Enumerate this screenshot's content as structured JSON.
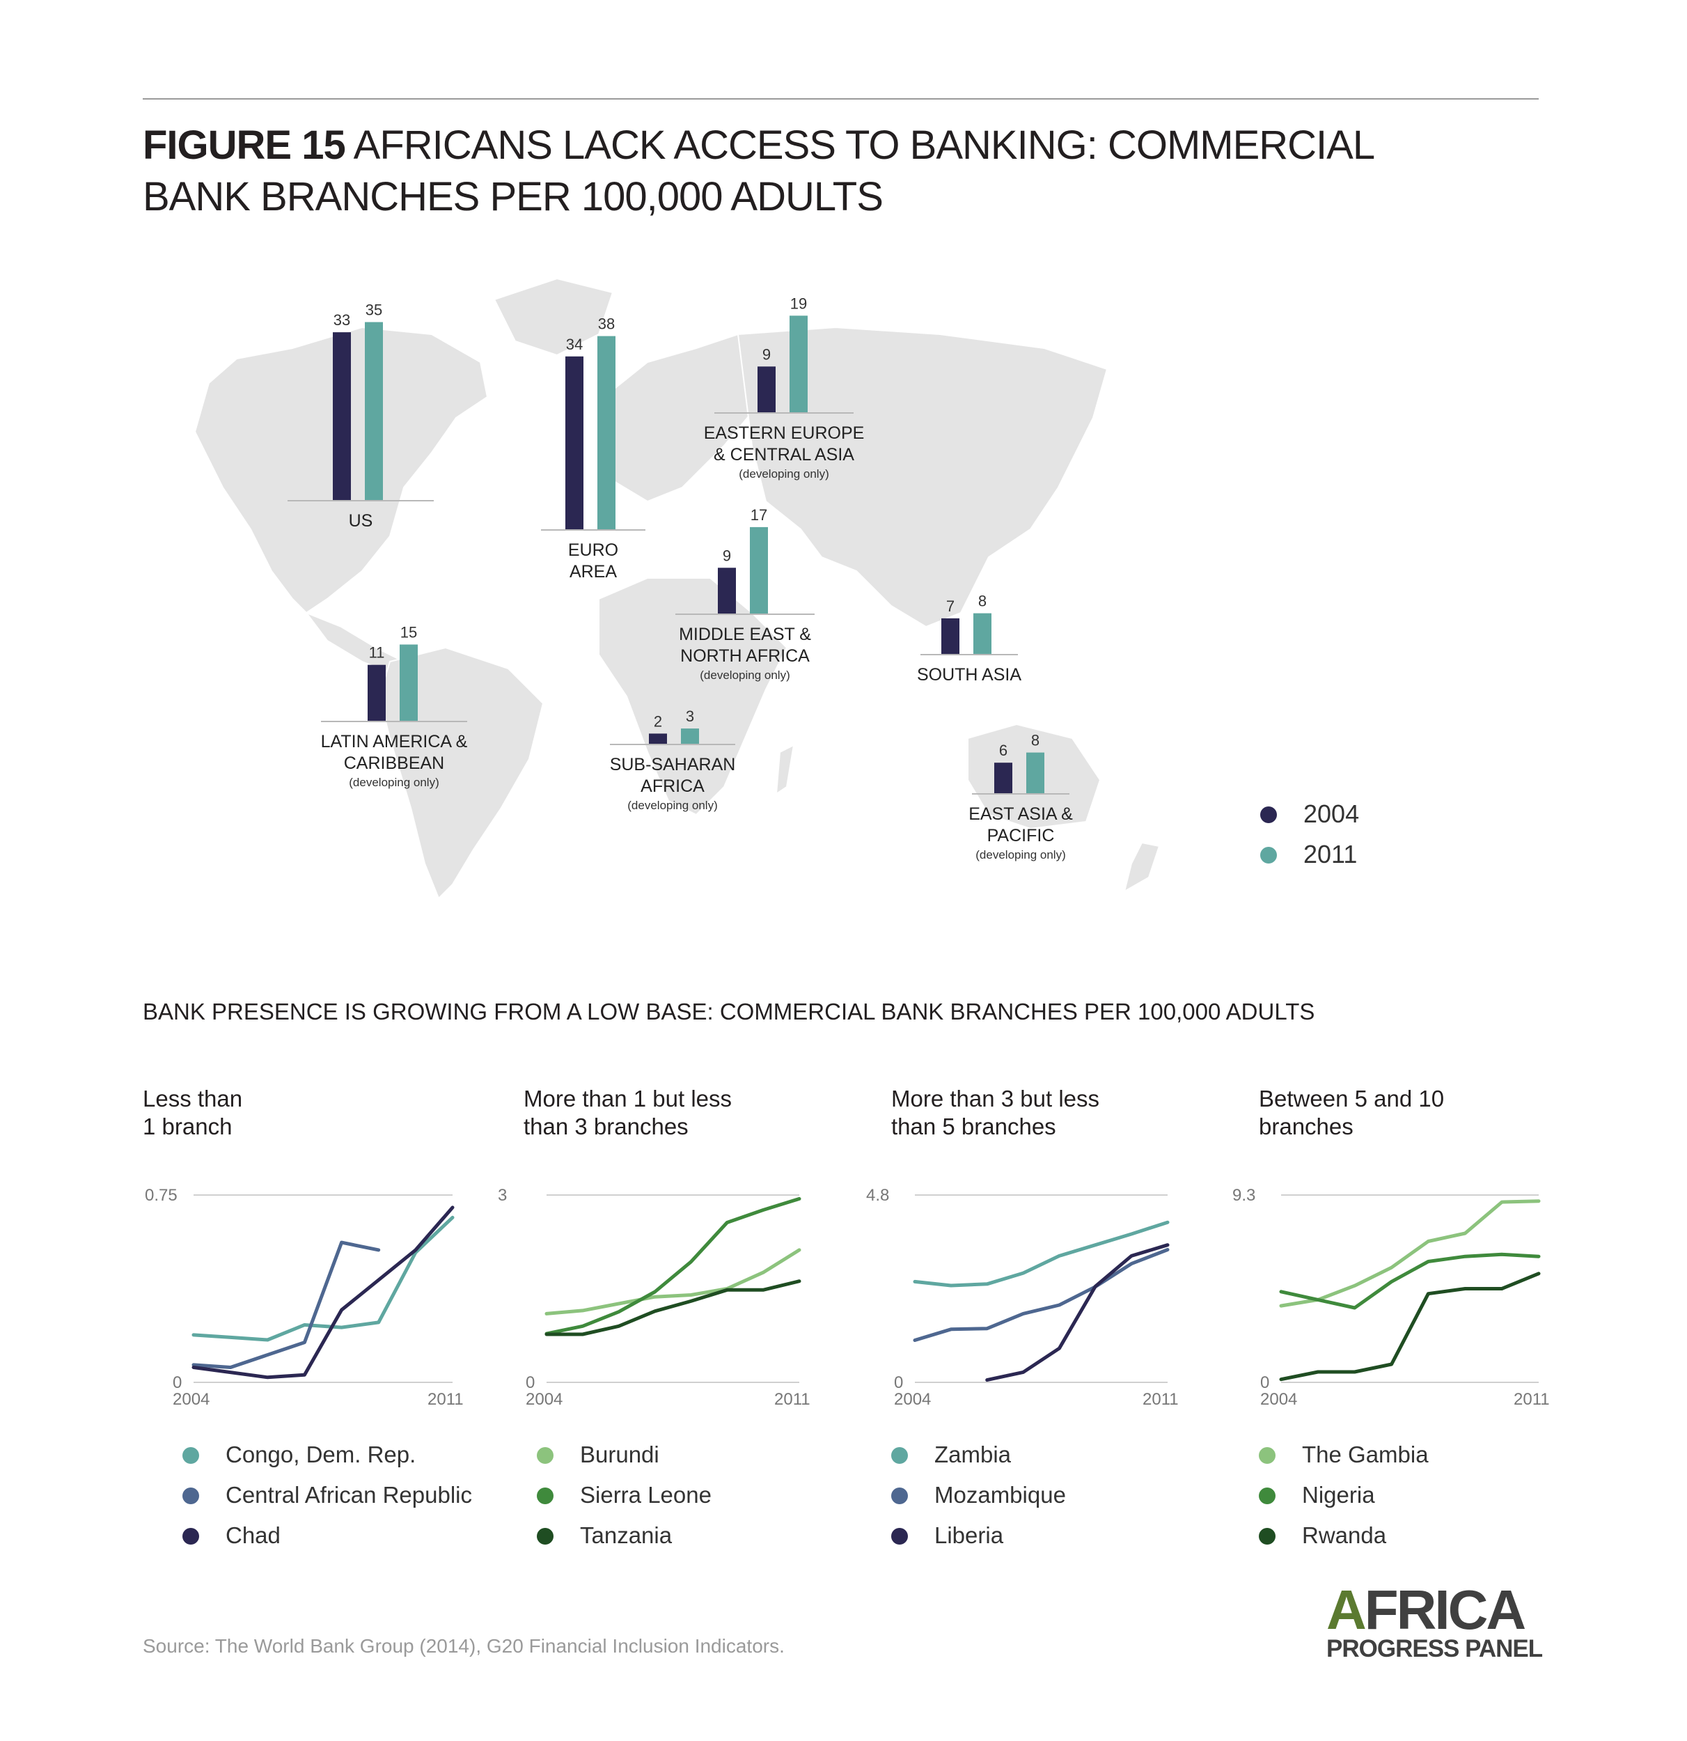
{
  "title": {
    "figure_label": "FIGURE 15",
    "text": "AFRICANS LACK ACCESS TO BANKING: COMMERCIAL BANK BRANCHES PER 100,000 ADULTS"
  },
  "colors": {
    "s2004": "#2b2752",
    "s2011": "#5fa7a0",
    "map": "#e4e4e4",
    "congo": "#5fa7a0",
    "car": "#4e6790",
    "chad": "#2b2752",
    "burundi": "#8cc37d",
    "sierra_leone": "#3f8a3c",
    "tanzania": "#1f4d22",
    "zambia": "#5fa7a0",
    "mozambique": "#4e6790",
    "liberia": "#2b2752",
    "gambia": "#8cc37d",
    "nigeria": "#3f8a3c",
    "rwanda": "#1f4d22"
  },
  "chart_data": [
    {
      "type": "bar",
      "series_names": [
        "2004",
        "2011"
      ],
      "regions": [
        {
          "name_lines": [
            "US"
          ],
          "note": "",
          "v2004": 33,
          "v2011": 35
        },
        {
          "name_lines": [
            "EURO",
            "AREA"
          ],
          "note": "",
          "v2004": 34,
          "v2011": 38
        },
        {
          "name_lines": [
            "EASTERN EUROPE",
            "& CENTRAL ASIA"
          ],
          "note": "(developing only)",
          "v2004": 9,
          "v2011": 19
        },
        {
          "name_lines": [
            "MIDDLE EAST &",
            "NORTH AFRICA"
          ],
          "note": "(developing only)",
          "v2004": 9,
          "v2011": 17
        },
        {
          "name_lines": [
            "SOUTH ASIA"
          ],
          "note": "",
          "v2004": 7,
          "v2011": 8
        },
        {
          "name_lines": [
            "LATIN AMERICA &",
            "CARIBBEAN"
          ],
          "note": "(developing only)",
          "v2004": 11,
          "v2011": 15
        },
        {
          "name_lines": [
            "SUB-SAHARAN",
            "AFRICA"
          ],
          "note": "(developing only)",
          "v2004": 2,
          "v2011": 3
        },
        {
          "name_lines": [
            "EAST ASIA &",
            "PACIFIC"
          ],
          "note": "(developing only)",
          "v2004": 6,
          "v2011": 8
        }
      ]
    },
    {
      "type": "line",
      "title_lines": [
        "Less than",
        "1 branch"
      ],
      "x": [
        2004,
        2005,
        2006,
        2007,
        2008,
        2009,
        2010,
        2011
      ],
      "xticks": [
        "2004",
        "2011"
      ],
      "ymax_label": "0.75",
      "ymin_label": "0",
      "ylim": [
        0,
        0.75
      ],
      "series": [
        {
          "name": "Congo, Dem. Rep.",
          "color_key": "congo",
          "values": [
            0.19,
            0.18,
            0.17,
            0.23,
            0.22,
            0.24,
            0.52,
            0.66
          ]
        },
        {
          "name": "Central African Republic",
          "color_key": "car",
          "values": [
            0.07,
            0.06,
            null,
            0.16,
            0.56,
            0.53,
            null,
            null
          ]
        },
        {
          "name": "Chad",
          "color_key": "chad",
          "values": [
            0.06,
            null,
            0.02,
            0.03,
            0.29,
            null,
            0.53,
            0.7
          ]
        }
      ]
    },
    {
      "type": "line",
      "title_lines": [
        "More than 1 but less",
        "than 3 branches"
      ],
      "x": [
        2004,
        2005,
        2006,
        2007,
        2008,
        2009,
        2010,
        2011
      ],
      "xticks": [
        "2004",
        "2011"
      ],
      "ymax_label": "3",
      "ymin_label": "0",
      "ylim": [
        0,
        3
      ],
      "series": [
        {
          "name": "Burundi",
          "color_key": "burundi",
          "values": [
            1.1,
            1.15,
            1.26,
            1.37,
            1.4,
            1.5,
            1.76,
            2.12
          ]
        },
        {
          "name": "Sierra Leone",
          "color_key": "sierra_leone",
          "values": [
            0.78,
            0.9,
            1.13,
            1.45,
            1.93,
            2.56,
            2.76,
            2.94
          ]
        },
        {
          "name": "Tanzania",
          "color_key": "tanzania",
          "values": [
            0.77,
            0.77,
            0.9,
            1.14,
            1.3,
            1.48,
            1.48,
            1.62
          ]
        }
      ]
    },
    {
      "type": "line",
      "title_lines": [
        "More than 3 but less",
        "than 5 branches"
      ],
      "x": [
        2004,
        2005,
        2006,
        2007,
        2008,
        2009,
        2010,
        2011
      ],
      "xticks": [
        "2004",
        "2011"
      ],
      "ymax_label": "4.8",
      "ymin_label": "0",
      "ylim": [
        0,
        4.8
      ],
      "series": [
        {
          "name": "Zambia",
          "color_key": "zambia",
          "values": [
            2.58,
            2.48,
            2.52,
            2.8,
            3.24,
            3.52,
            3.8,
            4.1
          ]
        },
        {
          "name": "Mozambique",
          "color_key": "mozambique",
          "values": [
            1.08,
            1.36,
            1.38,
            1.76,
            1.98,
            2.45,
            3.04,
            3.4
          ]
        },
        {
          "name": "Liberia",
          "color_key": "liberia",
          "values": [
            null,
            null,
            0.06,
            0.26,
            0.87,
            2.46,
            3.24,
            3.52
          ]
        }
      ]
    },
    {
      "type": "line",
      "title_lines": [
        "Between 5 and 10",
        "branches"
      ],
      "x": [
        2004,
        2005,
        2006,
        2007,
        2008,
        2009,
        2010,
        2011
      ],
      "xticks": [
        "2004",
        "2011"
      ],
      "ymax_label": "9.3",
      "ymin_label": "0",
      "ylim": [
        0,
        9.3
      ],
      "series": [
        {
          "name": "The Gambia",
          "color_key": "gambia",
          "values": [
            3.8,
            4.1,
            4.8,
            5.7,
            7.0,
            7.4,
            8.95,
            9.0
          ]
        },
        {
          "name": "Nigeria",
          "color_key": "nigeria",
          "values": [
            4.5,
            4.1,
            3.7,
            5.0,
            6.0,
            6.25,
            6.35,
            6.25
          ]
        },
        {
          "name": "Rwanda",
          "color_key": "rwanda",
          "values": [
            0.15,
            0.52,
            0.52,
            0.9,
            4.4,
            4.65,
            4.65,
            5.4
          ]
        }
      ]
    }
  ],
  "subtitle": "BANK PRESENCE IS GROWING FROM A LOW BASE: COMMERCIAL BANK BRANCHES PER 100,000 ADULTS",
  "source": "Source: The World Bank Group (2014), G20 Financial Inclusion Indicators.",
  "logo": {
    "line1": "AFRICA",
    "line2": "PROGRESS PANEL"
  }
}
